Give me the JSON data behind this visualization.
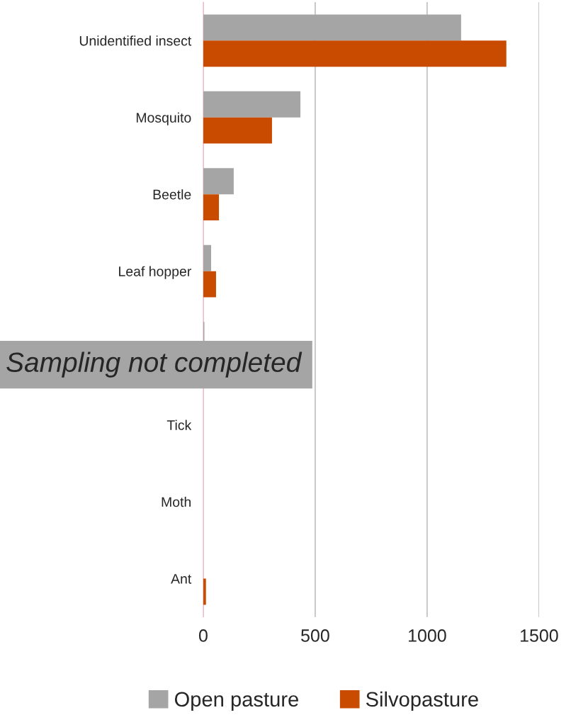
{
  "chart_data": {
    "type": "bar",
    "orientation": "horizontal",
    "categories": [
      "Unidentified insect",
      "Mosquito",
      "Beetle",
      "Leaf hopper",
      null,
      "Tick",
      "Moth",
      "Ant"
    ],
    "series": [
      {
        "name": "Open pasture",
        "color": "#a5a5a5",
        "values": [
          1152,
          434,
          136,
          35,
          5,
          0,
          0,
          0
        ]
      },
      {
        "name": "Silvopasture",
        "color": "#c84b00",
        "values": [
          1354,
          307,
          70,
          57,
          null,
          0,
          0,
          12
        ]
      }
    ],
    "xlim": [
      0,
      1500
    ],
    "xticks": [
      0,
      500,
      1000,
      1500
    ],
    "grid": "x",
    "legend": "bottom",
    "annotations": [
      "Sampling not completed"
    ]
  }
}
